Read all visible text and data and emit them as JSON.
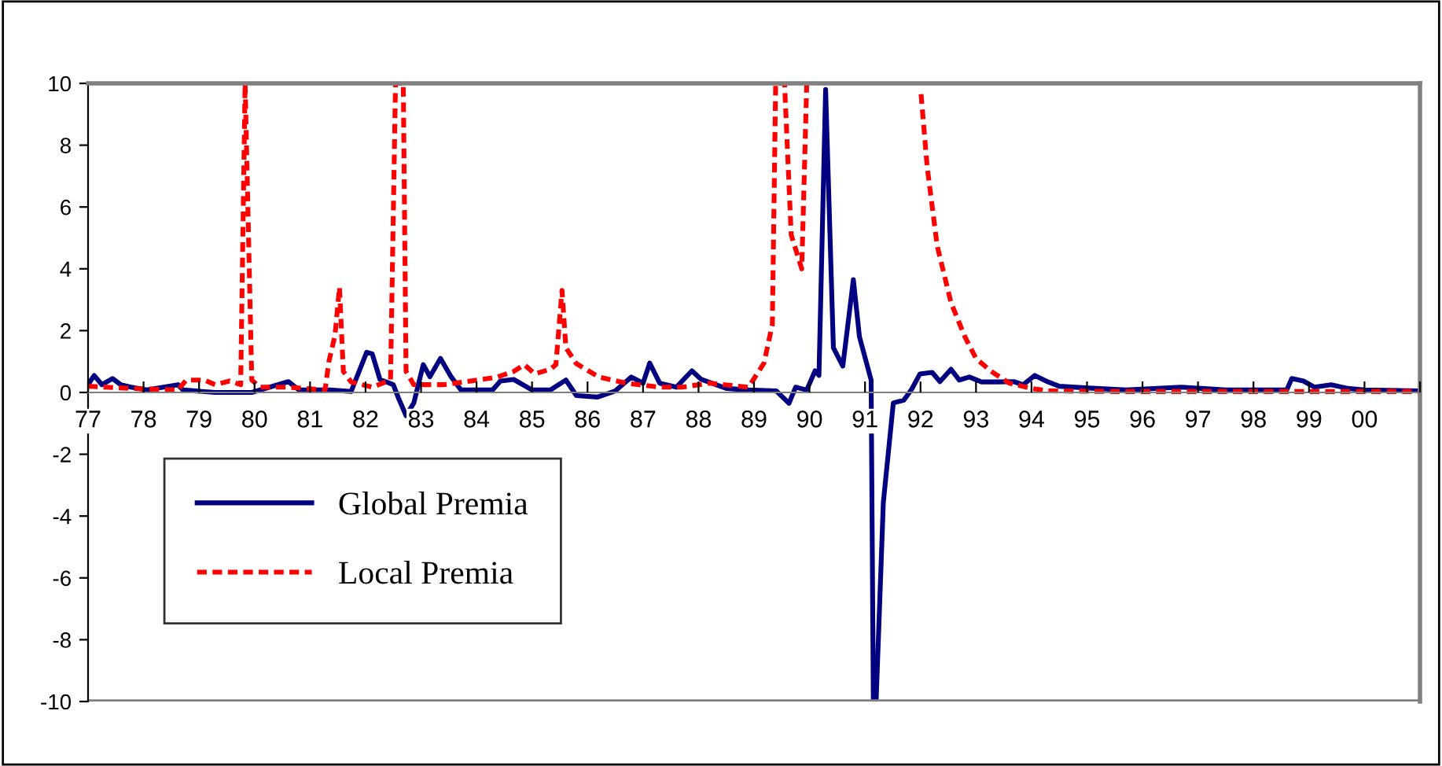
{
  "chart_data": {
    "type": "line",
    "xlim": [
      1977,
      2001
    ],
    "ylim": [
      -10,
      10
    ],
    "xticks": [
      {
        "value": 1977,
        "label": "77"
      },
      {
        "value": 1978,
        "label": "78"
      },
      {
        "value": 1979,
        "label": "79"
      },
      {
        "value": 1980,
        "label": "80"
      },
      {
        "value": 1981,
        "label": "81"
      },
      {
        "value": 1982,
        "label": "82"
      },
      {
        "value": 1983,
        "label": "83"
      },
      {
        "value": 1984,
        "label": "84"
      },
      {
        "value": 1985,
        "label": "85"
      },
      {
        "value": 1986,
        "label": "86"
      },
      {
        "value": 1987,
        "label": "87"
      },
      {
        "value": 1988,
        "label": "88"
      },
      {
        "value": 1989,
        "label": "89"
      },
      {
        "value": 1990,
        "label": "90"
      },
      {
        "value": 1991,
        "label": "91"
      },
      {
        "value": 1992,
        "label": "92"
      },
      {
        "value": 1993,
        "label": "93"
      },
      {
        "value": 1994,
        "label": "94"
      },
      {
        "value": 1995,
        "label": "95"
      },
      {
        "value": 1996,
        "label": "96"
      },
      {
        "value": 1997,
        "label": "97"
      },
      {
        "value": 1998,
        "label": "98"
      },
      {
        "value": 1999,
        "label": "99"
      },
      {
        "value": 2000,
        "label": "00"
      },
      {
        "value": 2001,
        "label": null
      }
    ],
    "yticks": [
      -10,
      -8,
      -6,
      -4,
      -2,
      0,
      2,
      4,
      6,
      8,
      10
    ],
    "grid": false,
    "legend": "bottom left",
    "marker": "none",
    "series": [
      {
        "name": "Global Premia",
        "color": "#000080",
        "line_style": "solid",
        "x": [
          1977.0,
          1977.11,
          1977.25,
          1977.44,
          1977.59,
          1977.77,
          1978.06,
          1978.62,
          1978.71,
          1979.29,
          1979.95,
          1980.61,
          1980.8,
          1981.36,
          1981.74,
          1982.02,
          1982.12,
          1982.26,
          1982.5,
          1982.59,
          1982.73,
          1982.87,
          1983.04,
          1983.16,
          1983.35,
          1983.54,
          1983.72,
          1984.29,
          1984.43,
          1984.67,
          1985.0,
          1985.33,
          1985.61,
          1985.8,
          1986.18,
          1986.5,
          1986.79,
          1987.0,
          1987.12,
          1987.3,
          1987.6,
          1987.88,
          1988.05,
          1988.5,
          1988.9,
          1989.4,
          1989.63,
          1989.75,
          1989.95,
          1990.1,
          1990.17,
          1990.29,
          1990.43,
          1990.6,
          1990.79,
          1990.9,
          1991.11,
          1991.15,
          1991.2,
          1991.33,
          1991.51,
          1991.7,
          1991.84,
          1991.99,
          1992.21,
          1992.35,
          1992.55,
          1992.7,
          1992.88,
          1993.1,
          1993.4,
          1993.68,
          1993.85,
          1994.06,
          1994.3,
          1994.5,
          1994.96,
          1995.7,
          1996.7,
          1997.5,
          1998.3,
          1998.6,
          1998.69,
          1998.9,
          1999.1,
          1999.4,
          1999.7,
          2000.0,
          2001.0
        ],
        "values": [
          0.25,
          0.55,
          0.25,
          0.45,
          0.25,
          0.17,
          0.08,
          0.25,
          0.08,
          0.0,
          0.0,
          0.35,
          0.08,
          0.08,
          0.03,
          1.3,
          1.25,
          0.42,
          0.25,
          -0.17,
          -0.75,
          -0.34,
          0.9,
          0.51,
          1.1,
          0.51,
          0.08,
          0.08,
          0.37,
          0.42,
          0.08,
          0.08,
          0.4,
          -0.1,
          -0.15,
          0.05,
          0.5,
          0.3,
          0.95,
          0.3,
          0.17,
          0.7,
          0.42,
          0.13,
          0.08,
          0.05,
          -0.35,
          0.17,
          0.08,
          0.7,
          0.55,
          9.8,
          1.45,
          0.85,
          3.65,
          1.8,
          0.4,
          -10,
          -10,
          -3.56,
          -0.34,
          -0.25,
          0.1,
          0.6,
          0.65,
          0.35,
          0.75,
          0.4,
          0.5,
          0.34,
          0.34,
          0.35,
          0.25,
          0.55,
          0.34,
          0.2,
          0.15,
          0.08,
          0.17,
          0.08,
          0.08,
          0.08,
          0.45,
          0.37,
          0.17,
          0.25,
          0.13,
          0.08,
          0.05
        ]
      },
      {
        "name": "Local Premia",
        "color": "#ff0000",
        "line_style": "dashed",
        "x": [
          1977.0,
          1977.77,
          1978.62,
          1978.77,
          1979.1,
          1979.29,
          1979.55,
          1979.75,
          1979.83,
          1979.95,
          1980.1,
          1980.61,
          1981.27,
          1981.34,
          1981.45,
          1981.53,
          1981.6,
          1981.74,
          1982.12,
          1982.45,
          1982.54,
          1982.68,
          1982.73,
          1982.87,
          1983.4,
          1984.1,
          1984.38,
          1984.67,
          1984.86,
          1985.05,
          1985.33,
          1985.43,
          1985.54,
          1985.61,
          1985.8,
          1986.2,
          1986.7,
          1987.3,
          1987.7,
          1988.2,
          1988.9,
          1989.18,
          1989.33,
          1989.39,
          1989.55,
          1989.67,
          1989.86,
          1989.95,
          1990.0,
          1992.01,
          1992.12,
          1992.3,
          1992.55,
          1992.8,
          1993.0,
          1993.26,
          1993.6,
          1994.0,
          1994.3,
          1995.5,
          2001.0
        ],
        "values": [
          0.2,
          0.13,
          0.08,
          0.4,
          0.4,
          0.25,
          0.37,
          0.25,
          10,
          0.4,
          0.17,
          0.17,
          0.08,
          1.0,
          1.85,
          3.4,
          0.68,
          0.34,
          0.17,
          0.4,
          10,
          10,
          0.68,
          0.25,
          0.25,
          0.42,
          0.5,
          0.68,
          0.9,
          0.6,
          0.75,
          0.9,
          3.3,
          1.45,
          0.93,
          0.5,
          0.3,
          0.17,
          0.17,
          0.3,
          0.17,
          0.95,
          2.2,
          10,
          10,
          5.1,
          4.0,
          10,
          null,
          9.65,
          7.3,
          4.75,
          2.9,
          1.8,
          1.1,
          0.7,
          0.3,
          0.13,
          0.05,
          0.03,
          0.03
        ]
      }
    ]
  }
}
